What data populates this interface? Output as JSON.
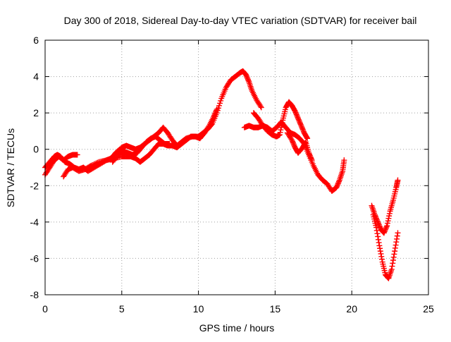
{
  "chart_data": {
    "type": "scatter",
    "title": "Day 300 of 2018, Sidereal Day-to-day VTEC variation (SDTVAR) for receiver bail",
    "xlabel": "GPS time / hours",
    "ylabel": "SDTVAR / TECUs",
    "xlim": [
      0,
      25
    ],
    "ylim": [
      -8,
      6
    ],
    "xticks": [
      "0",
      "5",
      "10",
      "15",
      "20",
      "25"
    ],
    "yticks": [
      "-8",
      "-6",
      "-4",
      "-2",
      "0",
      "2",
      "4",
      "6"
    ],
    "grid": true,
    "marker": "plus",
    "color": "#ff0000",
    "series": [
      {
        "values": [
          [
            0.0,
            -1.4
          ],
          [
            0.3,
            -1.0
          ],
          [
            0.6,
            -0.6
          ],
          [
            0.9,
            -0.4
          ],
          [
            1.2,
            -0.6
          ],
          [
            1.5,
            -0.4
          ],
          [
            1.8,
            -0.3
          ],
          [
            2.1,
            -0.3
          ]
        ]
      },
      {
        "values": [
          [
            0.0,
            -1.0
          ],
          [
            0.3,
            -0.7
          ],
          [
            0.6,
            -0.4
          ],
          [
            0.8,
            -0.3
          ],
          [
            1.0,
            -0.4
          ],
          [
            1.3,
            -0.7
          ],
          [
            1.6,
            -0.8
          ],
          [
            1.9,
            -1.0
          ],
          [
            2.2,
            -1.1
          ],
          [
            2.5,
            -1.0
          ],
          [
            2.8,
            -1.2
          ],
          [
            3.2,
            -1.0
          ],
          [
            3.6,
            -0.8
          ],
          [
            4.0,
            -0.6
          ],
          [
            4.3,
            -0.5
          ],
          [
            4.6,
            -0.2
          ],
          [
            5.0,
            0.1
          ],
          [
            5.3,
            0.2
          ],
          [
            5.6,
            0.1
          ],
          [
            5.9,
            0.0
          ],
          [
            6.2,
            0.1
          ],
          [
            6.5,
            0.3
          ],
          [
            6.8,
            0.5
          ],
          [
            7.1,
            0.7
          ],
          [
            7.4,
            0.9
          ],
          [
            7.7,
            1.2
          ],
          [
            8.0,
            0.9
          ],
          [
            8.3,
            0.5
          ],
          [
            8.6,
            0.2
          ],
          [
            8.9,
            0.4
          ],
          [
            9.2,
            0.6
          ],
          [
            9.6,
            0.7
          ],
          [
            10.0,
            0.7
          ],
          [
            10.3,
            0.9
          ],
          [
            10.6,
            1.1
          ],
          [
            10.9,
            1.4
          ],
          [
            11.2,
            2.0
          ],
          [
            11.5,
            2.8
          ],
          [
            11.8,
            3.4
          ],
          [
            12.1,
            3.8
          ],
          [
            12.4,
            4.0
          ],
          [
            12.7,
            4.2
          ],
          [
            12.9,
            4.3
          ],
          [
            13.1,
            4.1
          ],
          [
            13.3,
            3.7
          ],
          [
            13.5,
            3.2
          ],
          [
            13.8,
            2.7
          ],
          [
            14.1,
            2.3
          ]
        ]
      },
      {
        "values": [
          [
            1.2,
            -1.5
          ],
          [
            1.5,
            -1.1
          ],
          [
            1.8,
            -1.0
          ],
          [
            2.2,
            -1.2
          ],
          [
            2.6,
            -1.1
          ],
          [
            3.0,
            -0.9
          ],
          [
            3.5,
            -0.7
          ],
          [
            4.0,
            -0.6
          ],
          [
            4.5,
            -0.5
          ],
          [
            5.0,
            -0.4
          ],
          [
            5.3,
            -0.4
          ],
          [
            5.6,
            -0.4
          ],
          [
            5.9,
            -0.5
          ],
          [
            6.2,
            -0.7
          ],
          [
            6.5,
            -0.5
          ],
          [
            6.8,
            -0.3
          ],
          [
            7.1,
            0.0
          ],
          [
            7.4,
            0.3
          ],
          [
            7.7,
            0.3
          ],
          [
            8.0,
            0.2
          ],
          [
            8.3,
            0.2
          ],
          [
            8.6,
            0.1
          ],
          [
            8.9,
            0.3
          ],
          [
            9.2,
            0.5
          ],
          [
            9.5,
            0.7
          ],
          [
            9.8,
            0.7
          ],
          [
            10.1,
            0.6
          ],
          [
            10.4,
            0.9
          ],
          [
            10.7,
            1.3
          ],
          [
            11.0,
            1.8
          ],
          [
            11.2,
            2.2
          ]
        ]
      },
      {
        "values": [
          [
            4.4,
            -0.7
          ],
          [
            4.8,
            -0.3
          ],
          [
            5.1,
            -0.1
          ],
          [
            5.4,
            -0.2
          ],
          [
            5.7,
            -0.3
          ],
          [
            6.0,
            -0.2
          ],
          [
            6.3,
            0.1
          ],
          [
            6.6,
            0.4
          ],
          [
            6.9,
            0.6
          ],
          [
            7.2,
            0.7
          ],
          [
            7.5,
            0.5
          ],
          [
            7.8,
            0.3
          ],
          [
            8.1,
            0.3
          ]
        ]
      },
      {
        "values": [
          [
            13.0,
            1.2
          ],
          [
            13.3,
            1.3
          ],
          [
            13.6,
            1.2
          ],
          [
            13.9,
            1.2
          ],
          [
            14.2,
            1.3
          ],
          [
            14.5,
            1.2
          ],
          [
            14.8,
            1.0
          ],
          [
            15.1,
            1.2
          ],
          [
            15.4,
            1.5
          ],
          [
            15.7,
            1.2
          ],
          [
            16.0,
            0.9
          ],
          [
            16.3,
            0.8
          ],
          [
            16.6,
            0.6
          ],
          [
            16.9,
            0.3
          ],
          [
            17.2,
            -0.3
          ],
          [
            17.5,
            -0.9
          ],
          [
            17.8,
            -1.4
          ],
          [
            18.1,
            -1.7
          ],
          [
            18.4,
            -1.9
          ],
          [
            18.7,
            -2.3
          ],
          [
            19.0,
            -2.1
          ],
          [
            19.2,
            -1.7
          ],
          [
            19.4,
            -1.2
          ],
          [
            19.5,
            -0.6
          ]
        ]
      },
      {
        "values": [
          [
            13.6,
            2.0
          ],
          [
            13.9,
            1.7
          ],
          [
            14.2,
            1.3
          ],
          [
            14.5,
            1.0
          ],
          [
            14.8,
            0.8
          ],
          [
            15.1,
            0.7
          ],
          [
            15.3,
            0.8
          ],
          [
            15.5,
            1.6
          ],
          [
            15.7,
            2.3
          ],
          [
            15.9,
            2.6
          ],
          [
            16.1,
            2.4
          ],
          [
            16.3,
            2.1
          ],
          [
            16.5,
            1.7
          ],
          [
            16.7,
            1.3
          ],
          [
            16.9,
            0.9
          ],
          [
            17.1,
            0.6
          ]
        ]
      },
      {
        "values": [
          [
            15.8,
            0.9
          ],
          [
            16.1,
            0.5
          ],
          [
            16.3,
            0.1
          ],
          [
            16.5,
            -0.2
          ],
          [
            16.8,
            0.1
          ],
          [
            17.0,
            0.4
          ],
          [
            17.2,
            -0.2
          ],
          [
            17.4,
            -0.6
          ]
        ]
      },
      {
        "values": [
          [
            21.3,
            -3.1
          ],
          [
            21.5,
            -3.6
          ],
          [
            21.7,
            -4.0
          ],
          [
            21.9,
            -4.4
          ],
          [
            22.1,
            -4.6
          ],
          [
            22.3,
            -4.2
          ],
          [
            22.5,
            -3.4
          ],
          [
            22.7,
            -2.8
          ],
          [
            22.9,
            -2.1
          ],
          [
            23.0,
            -1.7
          ]
        ]
      },
      {
        "values": [
          [
            21.4,
            -3.6
          ],
          [
            21.6,
            -4.3
          ],
          [
            21.8,
            -5.3
          ],
          [
            22.0,
            -6.2
          ],
          [
            22.2,
            -6.9
          ],
          [
            22.4,
            -7.1
          ],
          [
            22.6,
            -6.6
          ],
          [
            22.8,
            -5.6
          ],
          [
            23.0,
            -4.6
          ]
        ]
      }
    ]
  }
}
